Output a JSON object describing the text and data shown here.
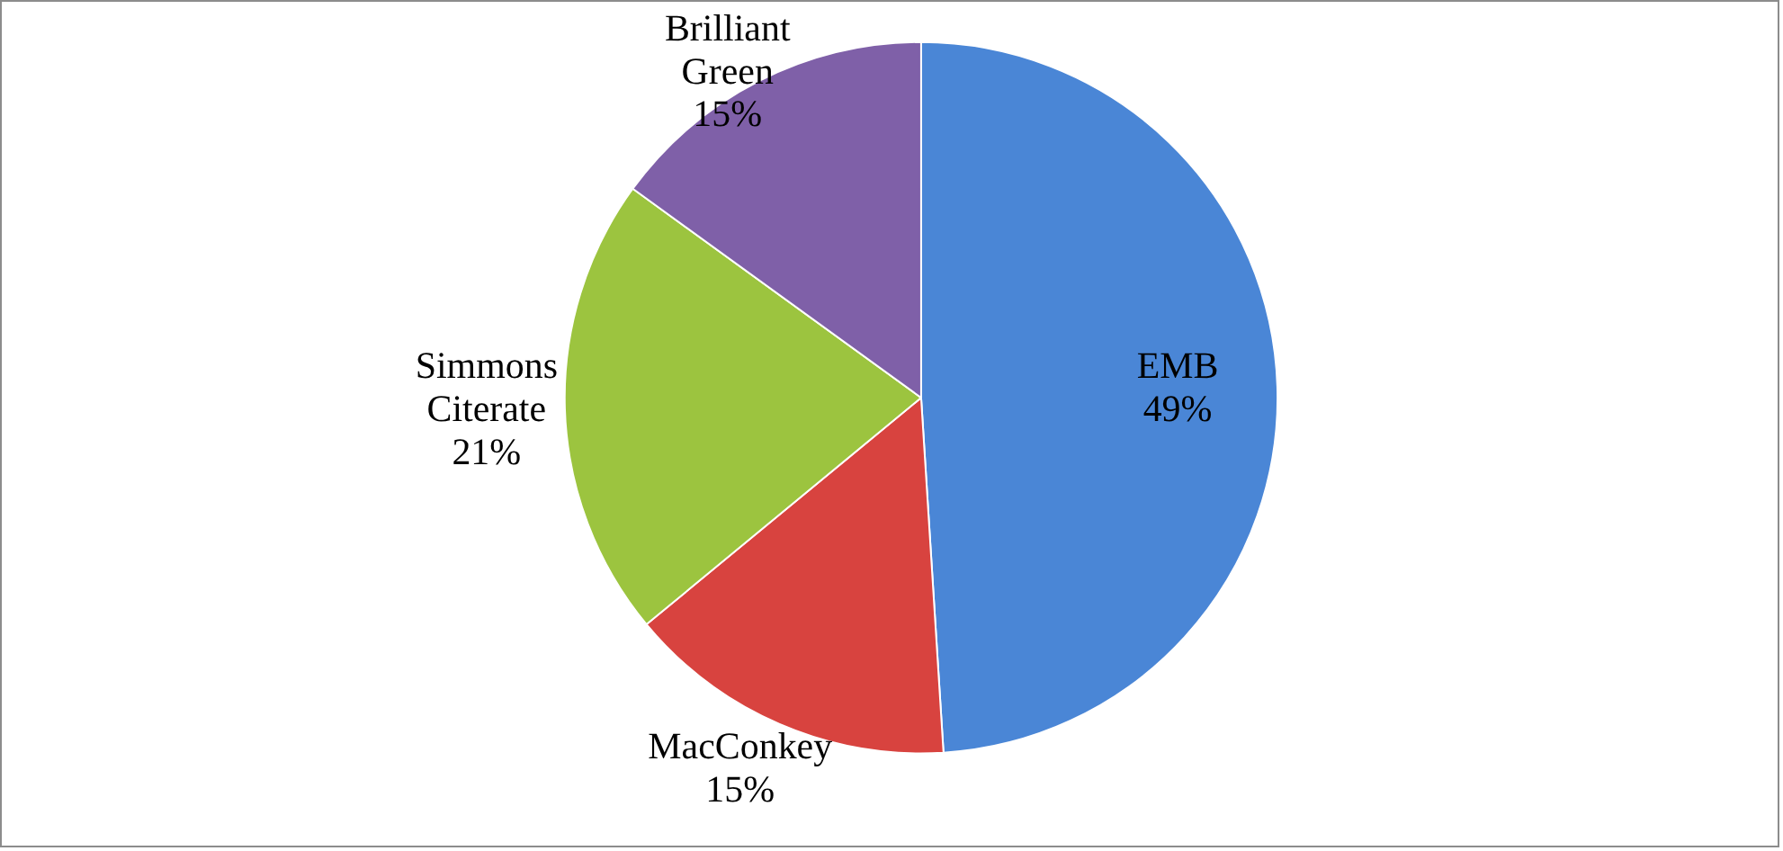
{
  "chart_data": {
    "type": "pie",
    "categories": [
      "EMB",
      "MacConkey",
      "Simmons Citerate",
      "Brilliant Green"
    ],
    "values": [
      49,
      15,
      21,
      15
    ],
    "value_labels": [
      "49%",
      "15%",
      "21%",
      "15%"
    ],
    "colors": [
      "#4a86d6",
      "#d8433f",
      "#9cc43f",
      "#7f60a8"
    ],
    "legend": false
  }
}
